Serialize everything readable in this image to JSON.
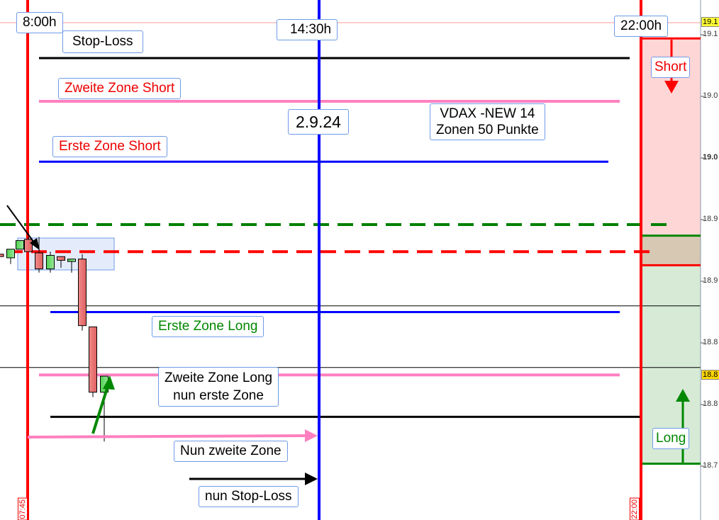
{
  "chart_data": {
    "type": "candlestick",
    "title": "",
    "y_tick_labels": [
      "19.1",
      "19.0",
      "19.0",
      "18.9",
      "18.9",
      "18.8",
      "18.8",
      "18.7"
    ],
    "y_ticks": [
      19100,
      19050,
      19000,
      18950,
      18900,
      18850,
      18800,
      18750
    ],
    "ylim": [
      18706,
      19128
    ],
    "current_price_labels": [
      {
        "text": "19.1",
        "price": 19110,
        "color": "#ffff33"
      },
      {
        "text": "18.8",
        "price": 18823,
        "color": "#ffd700"
      }
    ],
    "candles": [
      {
        "o": 18922,
        "c": 18920,
        "h": 18922,
        "l": 18920
      },
      {
        "o": 18919,
        "c": 18926,
        "h": 18926,
        "l": 18914
      },
      {
        "o": 18926,
        "c": 18933,
        "h": 18933,
        "l": 18926
      },
      {
        "o": 18934,
        "c": 18924,
        "h": 18936,
        "l": 18924
      },
      {
        "o": 18923,
        "c": 18910,
        "h": 18936,
        "l": 18907
      },
      {
        "o": 18910,
        "c": 18921,
        "h": 18924,
        "l": 18907
      },
      {
        "o": 18920,
        "c": 18917,
        "h": 18920,
        "l": 18911
      },
      {
        "o": 18916,
        "c": 18918,
        "h": 18918,
        "l": 18907
      },
      {
        "o": 18918,
        "c": 18864,
        "h": 18922,
        "l": 18860
      },
      {
        "o": 18863,
        "c": 18810,
        "h": 18863,
        "l": 18806
      },
      {
        "o": 18810,
        "c": 18823,
        "h": 18823,
        "l": 18770
      }
    ],
    "time_markers": [
      {
        "label": "8:00h",
        "color": "#ff0000"
      },
      {
        "label": "14:30h",
        "color": "#0000ff"
      },
      {
        "label": "22:00h",
        "color": "#ff0000"
      }
    ],
    "time_axis_labels": [
      "07:45",
      "22:00"
    ],
    "levels": [
      {
        "name": "stop-loss-short",
        "price": 19081,
        "color": "#000000"
      },
      {
        "name": "zweite-zone-short",
        "price": 19046,
        "color": "#ff80c0"
      },
      {
        "name": "erste-zone-short",
        "price": 18997,
        "color": "#0000ff"
      },
      {
        "name": "green-dashed",
        "price": 18946,
        "color": "#008000",
        "dashed": true
      },
      {
        "name": "red-dashed",
        "price": 18924,
        "color": "#ff0000",
        "dashed": true
      },
      {
        "name": "erste-zone-long",
        "price": 18875,
        "color": "#0000ff"
      },
      {
        "name": "zweite-zone-long",
        "price": 18824,
        "color": "#ff80c0"
      },
      {
        "name": "stop-loss-long",
        "price": 18790,
        "color": "#000000"
      }
    ],
    "thin_lines": [
      18880,
      18830
    ],
    "zones": [
      {
        "name": "short",
        "from": 18937,
        "to": 19097,
        "color": "#ffd6d6"
      },
      {
        "name": "overlap",
        "from": 18913,
        "to": 18937,
        "color": "#d7c8b4"
      },
      {
        "name": "long",
        "from": 18752,
        "to": 18913,
        "color": "#d6ead6"
      }
    ]
  },
  "labels": {
    "t800": "8:00h",
    "t1430": "14:30h",
    "t2200": "22:00h",
    "stop_loss": "Stop-Loss",
    "zweite_short": "Zweite Zone Short",
    "erste_short": "Erste Zone Short",
    "date": "2.9.24",
    "vdax_line1": "VDAX -NEW 14",
    "vdax_line2": "Zonen 50 Punkte",
    "erste_long": "Erste Zone Long",
    "zweite_long_line1": "Zweite Zone Long",
    "zweite_long_line2": "nun erste Zone",
    "nun_zweite": "Nun zweite Zone",
    "nun_stop": "nun  Stop-Loss",
    "short": "Short",
    "long": "Long"
  }
}
